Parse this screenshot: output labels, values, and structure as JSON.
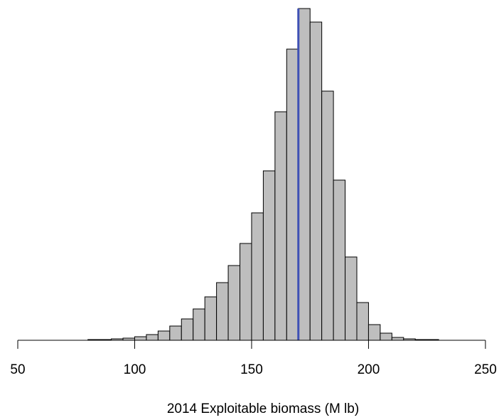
{
  "chart_data": {
    "type": "histogram",
    "xlabel": "2014 Exploitable biomass (M lb)",
    "bins": [
      80,
      85,
      90,
      95,
      100,
      105,
      110,
      115,
      120,
      125,
      130,
      135,
      140,
      145,
      150,
      155,
      160,
      165,
      170,
      175,
      180,
      185,
      190,
      195,
      200,
      205,
      210,
      215,
      220,
      225,
      230
    ],
    "values": [
      1,
      1,
      2,
      3,
      5,
      8,
      13,
      20,
      30,
      44,
      61,
      81,
      105,
      136,
      179,
      238,
      321,
      409,
      466,
      447,
      350,
      225,
      117,
      53,
      22,
      10,
      4,
      2,
      1,
      1
    ],
    "color": "#bebebe",
    "reference_line": {
      "value": 170,
      "color": "#3f51b5"
    },
    "xlim": [
      42.4,
      255.8
    ],
    "xticks": [
      50,
      100,
      150,
      200,
      250
    ],
    "ylim": [
      0,
      466
    ]
  }
}
